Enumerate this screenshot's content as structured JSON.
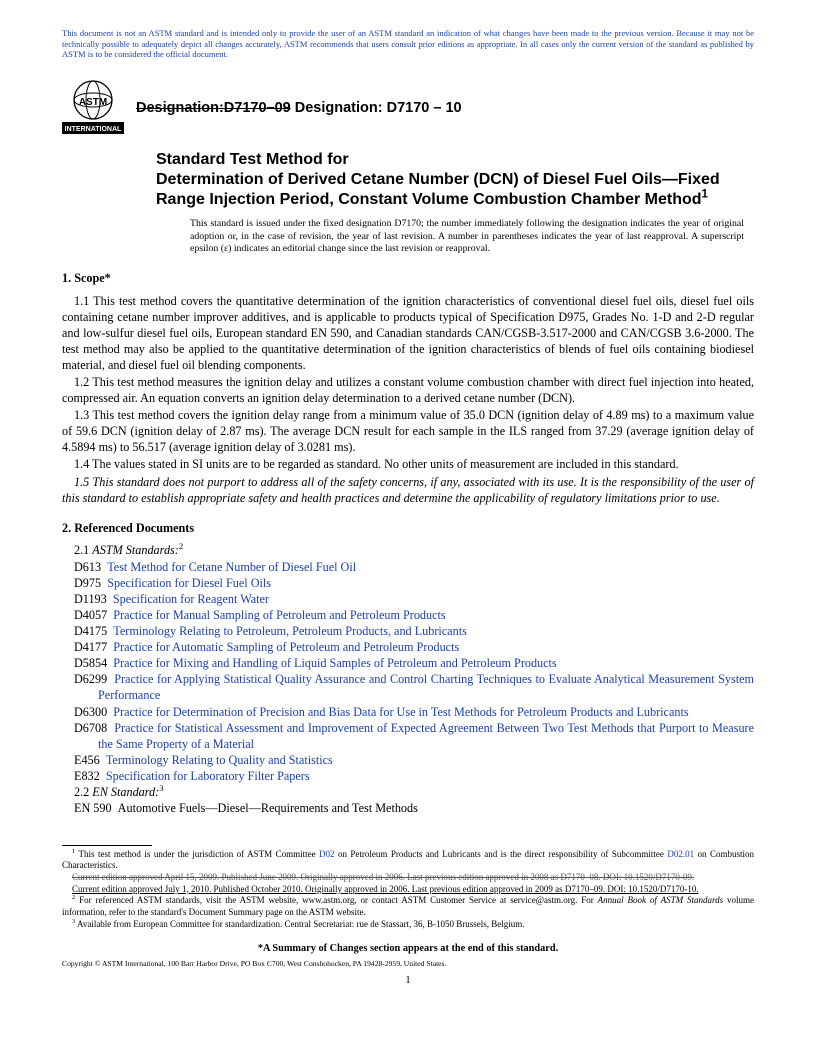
{
  "disclaimer": "This document is not an ASTM standard and is intended only to provide the user of an ASTM standard an indication of what changes have been made to the previous version. Because it may not be technically possible to adequately depict all changes accurately, ASTM recommends that users consult prior editions as appropriate. In all cases only the current version of the standard as published by ASTM is to be considered the official document.",
  "logo_text": "INTERNATIONAL",
  "designation_strike": "Designation:D7170–09",
  "designation_new": " Designation: D7170 – 10",
  "title1": "Standard Test Method for",
  "title2": "Determination of Derived Cetane Number (DCN) of Diesel Fuel Oils—Fixed Range Injection Period, Constant Volume Combustion Chamber Method",
  "title_sup": "1",
  "title_note": "This standard is issued under the fixed designation D7170; the number immediately following the designation indicates the year of original adoption or, in the case of revision, the year of last revision. A number in parentheses indicates the year of last reapproval. A superscript epsilon (ε) indicates an editorial change since the last revision or reapproval.",
  "s1_head": "1. Scope*",
  "s1_1": "1.1 This test method covers the quantitative determination of the ignition characteristics of conventional diesel fuel oils, diesel fuel oils containing cetane number improver additives, and is applicable to products typical of Specification D975, Grades No. 1-D and 2-D regular and low-sulfur diesel fuel oils, European standard EN 590, and Canadian standards CAN/CGSB-3.517-2000 and CAN/CGSB 3.6-2000. The test method may also be applied to the quantitative determination of the ignition characteristics of blends of fuel oils containing biodiesel material, and diesel fuel oil blending components.",
  "s1_2": "1.2 This test method measures the ignition delay and utilizes a constant volume combustion chamber with direct fuel injection into heated, compressed air. An equation converts an ignition delay determination to a derived cetane number (DCN).",
  "s1_3": "1.3 This test method covers the ignition delay range from a minimum value of 35.0 DCN (ignition delay of 4.89 ms) to a maximum value of 59.6 DCN (ignition delay of 2.87 ms). The average DCN result for each sample in the ILS ranged from 37.29 (average ignition delay of 4.5894 ms) to 56.517 (average ignition delay of 3.0281 ms).",
  "s1_4": "1.4 The values stated in SI units are to be regarded as standard. No other units of measurement are included in this standard.",
  "s1_5": "1.5 This standard does not purport to address all of the safety concerns, if any, associated with its use. It is the responsibility of the user of this standard to establish appropriate safety and health practices and determine the applicability of regulatory limitations prior to use.",
  "s2_head": "2. Referenced Documents",
  "s2_1": "2.1 ",
  "s2_1i": "ASTM Standards:",
  "s2_1sup": "2",
  "refs": [
    {
      "code": "D613",
      "title": "Test Method for Cetane Number of Diesel Fuel Oil"
    },
    {
      "code": "D975",
      "title": "Specification for Diesel Fuel Oils"
    },
    {
      "code": "D1193",
      "title": "Specification for Reagent Water"
    },
    {
      "code": "D4057",
      "title": "Practice for Manual Sampling of Petroleum and Petroleum Products"
    },
    {
      "code": "D4175",
      "title": "Terminology Relating to Petroleum, Petroleum Products, and Lubricants"
    },
    {
      "code": "D4177",
      "title": "Practice for Automatic Sampling of Petroleum and Petroleum Products"
    },
    {
      "code": "D5854",
      "title": "Practice for Mixing and Handling of Liquid Samples of Petroleum and Petroleum Products"
    },
    {
      "code": "D6299",
      "title": "Practice for Applying Statistical Quality Assurance and Control Charting Techniques to Evaluate Analytical Measurement System Performance"
    },
    {
      "code": "D6300",
      "title": "Practice for Determination of Precision and Bias Data for Use in Test Methods for Petroleum Products and Lubricants"
    },
    {
      "code": "D6708",
      "title": "Practice for Statistical Assessment and Improvement of Expected Agreement Between Two Test Methods that Purport to Measure the Same Property of a Material"
    },
    {
      "code": "E456",
      "title": "Terminology Relating to Quality and Statistics"
    },
    {
      "code": "E832",
      "title": "Specification for Laboratory Filter Papers"
    }
  ],
  "s2_2": "2.2 ",
  "s2_2i": "EN Standard:",
  "s2_2sup": "3",
  "en590_code": "EN 590",
  "en590_title": "Automotive Fuels—Diesel—Requirements and Test Methods",
  "fn1a": " This test method is under the jurisdiction of ASTM Committee ",
  "fn1b": "D02",
  "fn1c": " on Petroleum Products and Lubricants and is the direct responsibility of Subcommittee ",
  "fn1d": "D02.01",
  "fn1e": " on Combustion Characteristics.",
  "fn1_strike": "Current edition approved April 15, 2009. Published June 2009. Originally approved in 2006. Last previous edition approved in 2008 as D7170–08. DOI: 10.1520/D7170-09.",
  "fn1_new": "Current edition approved July 1, 2010. Published October 2010. Originally approved in 2006. Last previous edition approved in 2009 as D7170–09. DOI: 10.1520/D7170-10.",
  "fn2a": " For referenced ASTM standards, visit the ASTM website, www.astm.org, or contact ASTM Customer Service at service@astm.org. For ",
  "fn2i": "Annual Book of ASTM Standards",
  "fn2b": " volume information, refer to the standard's Document Summary page on the ASTM website.",
  "fn3": " Available from European Committee for standardization. Central Secretariat: rue de Stassart, 36, B-1050 Brussels, Belgium.",
  "summary": "*A Summary of Changes section appears at the end of this standard.",
  "copyright": "Copyright © ASTM International, 100 Barr Harbor Drive, PO Box C700, West Conshohocken, PA 19428-2959, United States.",
  "page": "1"
}
